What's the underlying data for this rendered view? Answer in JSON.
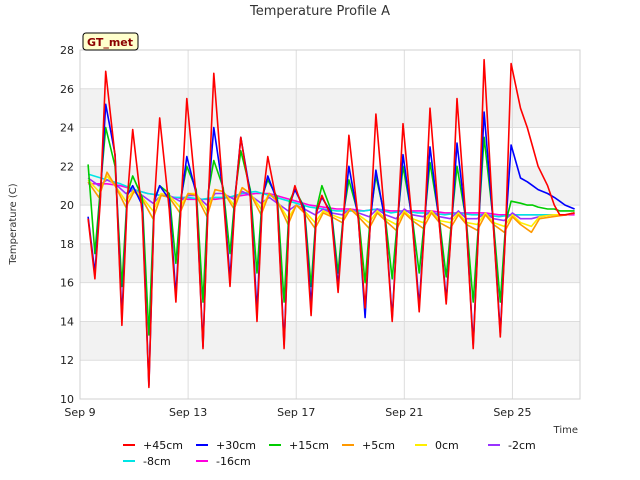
{
  "chart_data": {
    "type": "line",
    "title": "Temperature Profile A",
    "xlabel": "Time",
    "ylabel": "Temperature (C)",
    "ylim": [
      10,
      28
    ],
    "yticks": [
      10,
      12,
      14,
      16,
      18,
      20,
      22,
      24,
      26,
      28
    ],
    "xlim": [
      0,
      18.5
    ],
    "xticks": [
      {
        "label": "Sep 9",
        "x": 0
      },
      {
        "label": "Sep 13",
        "x": 4
      },
      {
        "label": "Sep 17",
        "x": 8
      },
      {
        "label": "Sep 21",
        "x": 12
      },
      {
        "label": "Sep 25",
        "x": 16
      }
    ],
    "annotation": "GT_met",
    "grid": true,
    "legend_position": "bottom",
    "series": [
      {
        "name": "+45cm",
        "color": "#ff0000",
        "x": [
          0.3,
          0.55,
          0.75,
          0.95,
          1.3,
          1.55,
          1.75,
          1.95,
          2.3,
          2.55,
          2.75,
          2.95,
          3.3,
          3.55,
          3.75,
          3.95,
          4.3,
          4.55,
          4.75,
          4.95,
          5.3,
          5.55,
          5.75,
          5.95,
          6.3,
          6.55,
          6.75,
          6.95,
          7.3,
          7.55,
          7.75,
          7.95,
          8.3,
          8.55,
          8.75,
          8.95,
          9.3,
          9.55,
          9.75,
          9.95,
          10.3,
          10.55,
          10.75,
          10.95,
          11.3,
          11.55,
          11.75,
          11.95,
          12.3,
          12.55,
          12.75,
          12.95,
          13.3,
          13.55,
          13.75,
          13.95,
          14.3,
          14.55,
          14.75,
          14.95,
          15.3,
          15.55,
          15.75,
          15.95,
          16.3,
          16.55,
          16.75,
          16.95,
          17.3,
          17.55,
          17.75,
          17.95,
          18.3
        ],
        "y": [
          19.3,
          16.2,
          20.2,
          26.9,
          22.5,
          13.8,
          20.3,
          23.9,
          19.6,
          10.6,
          20.1,
          24.5,
          19.8,
          15.0,
          20.3,
          25.5,
          20.4,
          12.6,
          20.4,
          26.8,
          20.5,
          15.8,
          20.5,
          23.5,
          20.4,
          14.0,
          20.2,
          22.5,
          20.0,
          12.6,
          19.9,
          21.0,
          19.6,
          14.3,
          19.6,
          20.5,
          19.4,
          15.5,
          19.4,
          23.6,
          19.2,
          14.7,
          19.2,
          24.7,
          19.0,
          14.0,
          19.0,
          24.2,
          19.0,
          14.5,
          19.0,
          25.0,
          18.9,
          14.9,
          18.9,
          25.5,
          18.8,
          12.6,
          18.8,
          27.5,
          18.8,
          13.2,
          18.8,
          27.3,
          25.0,
          24.0,
          23.0,
          22.0,
          21.0,
          20.0,
          19.5,
          19.5,
          19.6
        ]
      },
      {
        "name": "+30cm",
        "color": "#0000ff",
        "x": [
          0.3,
          0.55,
          0.75,
          0.95,
          1.3,
          1.55,
          1.75,
          1.95,
          2.3,
          2.55,
          2.75,
          2.95,
          3.3,
          3.55,
          3.75,
          3.95,
          4.3,
          4.55,
          4.75,
          4.95,
          5.3,
          5.55,
          5.75,
          5.95,
          6.3,
          6.55,
          6.75,
          6.95,
          7.3,
          7.55,
          7.75,
          7.95,
          8.3,
          8.55,
          8.75,
          8.95,
          9.3,
          9.55,
          9.75,
          9.95,
          10.3,
          10.55,
          10.75,
          10.95,
          11.3,
          11.55,
          11.75,
          11.95,
          12.3,
          12.55,
          12.75,
          12.95,
          13.3,
          13.55,
          13.75,
          13.95,
          14.3,
          14.55,
          14.75,
          14.95,
          15.3,
          15.55,
          15.75,
          15.95,
          16.3,
          16.55,
          16.75,
          16.95,
          17.3,
          17.55,
          17.75,
          17.95,
          18.3
        ],
        "y": [
          19.4,
          16.5,
          20.4,
          25.2,
          22.6,
          14.2,
          20.5,
          21.0,
          20.0,
          10.7,
          20.2,
          21.0,
          20.3,
          15.3,
          20.4,
          22.5,
          20.6,
          12.7,
          20.6,
          24.0,
          20.7,
          16.2,
          20.6,
          23.5,
          20.6,
          14.5,
          20.4,
          21.5,
          20.2,
          12.8,
          20.0,
          20.8,
          19.8,
          14.8,
          19.7,
          20.4,
          19.6,
          15.8,
          19.5,
          22.0,
          19.3,
          14.2,
          19.3,
          21.8,
          19.1,
          14.2,
          19.1,
          22.6,
          19.1,
          14.8,
          19.1,
          23.0,
          19.0,
          15.1,
          19.0,
          23.2,
          18.9,
          12.8,
          18.9,
          24.8,
          18.9,
          13.4,
          18.9,
          23.1,
          21.4,
          21.2,
          21.0,
          20.8,
          20.6,
          20.4,
          20.2,
          20.0,
          19.8
        ]
      },
      {
        "name": "+15cm",
        "color": "#00cc00",
        "x": [
          0.3,
          0.55,
          0.75,
          0.95,
          1.3,
          1.55,
          1.75,
          1.95,
          2.3,
          2.55,
          2.75,
          2.95,
          3.3,
          3.55,
          3.75,
          3.95,
          4.3,
          4.55,
          4.75,
          4.95,
          5.3,
          5.55,
          5.75,
          5.95,
          6.3,
          6.55,
          6.75,
          6.95,
          7.3,
          7.55,
          7.75,
          7.95,
          8.3,
          8.55,
          8.75,
          8.95,
          9.3,
          9.55,
          9.75,
          9.95,
          10.3,
          10.55,
          10.75,
          10.95,
          11.3,
          11.55,
          11.75,
          11.95,
          12.3,
          12.55,
          12.75,
          12.95,
          13.3,
          13.55,
          13.75,
          13.95,
          14.3,
          14.55,
          14.75,
          14.95,
          15.3,
          15.55,
          15.75,
          15.95,
          16.3,
          16.55,
          16.75,
          16.95,
          17.3,
          17.55,
          17.75,
          17.95,
          18.3
        ],
        "y": [
          22.1,
          17.5,
          20.8,
          24.0,
          22.0,
          15.8,
          20.6,
          21.5,
          20.4,
          13.3,
          20.3,
          21.0,
          20.6,
          17.0,
          20.5,
          22.0,
          20.8,
          15.0,
          20.7,
          22.3,
          20.9,
          17.5,
          20.7,
          22.8,
          20.8,
          16.5,
          20.5,
          21.3,
          20.4,
          15.0,
          20.2,
          20.8,
          19.9,
          15.8,
          19.8,
          21.0,
          19.7,
          16.5,
          19.6,
          21.3,
          19.5,
          16.0,
          19.5,
          21.5,
          19.3,
          16.2,
          19.3,
          22.0,
          19.3,
          16.5,
          19.3,
          22.2,
          19.2,
          16.3,
          19.2,
          22.0,
          19.1,
          15.0,
          19.1,
          23.5,
          19.1,
          15.0,
          19.1,
          20.2,
          20.1,
          20.0,
          20.0,
          19.9,
          19.8,
          19.8,
          19.7,
          19.7,
          19.7
        ]
      },
      {
        "name": "+5cm",
        "color": "#ff9900",
        "x": [
          0.3,
          0.7,
          1.0,
          1.3,
          1.7,
          2.0,
          2.3,
          2.7,
          3.0,
          3.3,
          3.7,
          4.0,
          4.3,
          4.7,
          5.0,
          5.3,
          5.7,
          6.0,
          6.3,
          6.7,
          7.0,
          7.3,
          7.7,
          8.0,
          8.3,
          8.7,
          9.0,
          9.3,
          9.7,
          10.0,
          10.3,
          10.7,
          11.0,
          11.3,
          11.7,
          12.0,
          12.3,
          12.7,
          13.0,
          13.3,
          13.7,
          14.0,
          14.3,
          14.7,
          15.0,
          15.3,
          15.7,
          16.0,
          16.3,
          16.7,
          17.0,
          17.5,
          18.0,
          18.3
        ],
        "y": [
          21.2,
          20.4,
          21.7,
          21.0,
          19.9,
          20.7,
          20.3,
          19.3,
          20.5,
          20.4,
          19.6,
          20.6,
          20.5,
          19.4,
          20.8,
          20.7,
          19.8,
          20.9,
          20.6,
          19.5,
          20.6,
          20.2,
          19.0,
          20.0,
          19.6,
          18.8,
          19.6,
          19.4,
          19.1,
          19.8,
          19.4,
          18.8,
          19.6,
          19.2,
          18.7,
          19.6,
          19.2,
          18.8,
          19.6,
          19.1,
          18.8,
          19.5,
          19.0,
          18.7,
          19.5,
          19.0,
          18.6,
          19.4,
          19.0,
          18.6,
          19.3,
          19.4,
          19.5,
          19.6
        ]
      },
      {
        "name": "0cm",
        "color": "#ffee00",
        "x": [
          0.3,
          0.7,
          1.0,
          1.3,
          1.7,
          2.0,
          2.3,
          2.7,
          3.0,
          3.3,
          3.7,
          4.0,
          4.3,
          4.7,
          5.0,
          5.3,
          5.7,
          6.0,
          6.3,
          6.7,
          7.0,
          7.3,
          7.7,
          8.0,
          8.3,
          8.7,
          9.0,
          9.3,
          9.7,
          10.0,
          10.3,
          10.7,
          11.0,
          11.3,
          11.7,
          12.0,
          12.3,
          12.7,
          13.0,
          13.3,
          13.7,
          14.0,
          14.3,
          14.7,
          15.0,
          15.3,
          15.7,
          16.0,
          16.3,
          16.7,
          17.0,
          17.5,
          18.0,
          18.3
        ],
        "y": [
          21.3,
          20.7,
          21.5,
          21.0,
          20.2,
          20.8,
          20.4,
          19.7,
          20.6,
          20.5,
          19.9,
          20.6,
          20.6,
          19.7,
          20.8,
          20.7,
          20.0,
          20.9,
          20.6,
          19.8,
          20.6,
          20.2,
          19.3,
          20.0,
          19.7,
          19.1,
          19.7,
          19.5,
          19.3,
          19.8,
          19.5,
          19.1,
          19.7,
          19.3,
          19.0,
          19.7,
          19.3,
          19.1,
          19.7,
          19.2,
          19.1,
          19.6,
          19.1,
          19.0,
          19.6,
          19.1,
          18.9,
          19.5,
          19.1,
          18.9,
          19.4,
          19.5,
          19.5,
          19.6
        ]
      },
      {
        "name": "-2cm",
        "color": "#9933ff",
        "x": [
          0.3,
          0.7,
          1.0,
          1.3,
          1.7,
          2.0,
          2.3,
          2.7,
          3.0,
          3.3,
          3.7,
          4.0,
          4.3,
          4.7,
          5.0,
          5.3,
          5.7,
          6.0,
          6.3,
          6.7,
          7.0,
          7.3,
          7.7,
          8.0,
          8.3,
          8.7,
          9.0,
          9.3,
          9.7,
          10.0,
          10.3,
          10.7,
          11.0,
          11.3,
          11.7,
          12.0,
          12.3,
          12.7,
          13.0,
          13.3,
          13.7,
          14.0,
          14.3,
          14.7,
          15.0,
          15.3,
          15.7,
          16.0,
          16.3,
          16.7,
          17.0,
          17.5,
          18.0,
          18.3
        ],
        "y": [
          21.4,
          21.0,
          21.3,
          21.1,
          20.6,
          20.8,
          20.5,
          20.1,
          20.5,
          20.5,
          20.2,
          20.5,
          20.5,
          20.0,
          20.6,
          20.6,
          20.3,
          20.7,
          20.5,
          20.1,
          20.4,
          20.1,
          19.7,
          20.0,
          19.8,
          19.5,
          19.8,
          19.6,
          19.5,
          19.8,
          19.6,
          19.4,
          19.8,
          19.5,
          19.3,
          19.8,
          19.5,
          19.4,
          19.7,
          19.4,
          19.3,
          19.7,
          19.3,
          19.3,
          19.6,
          19.3,
          19.2,
          19.6,
          19.3,
          19.3,
          19.4,
          19.5,
          19.5,
          19.6
        ]
      },
      {
        "name": "-8cm",
        "color": "#00e5e5",
        "x": [
          0.3,
          1.0,
          1.5,
          2.0,
          2.5,
          3.0,
          3.5,
          4.0,
          4.5,
          5.0,
          5.5,
          6.0,
          6.5,
          7.0,
          7.5,
          8.0,
          8.5,
          9.0,
          9.5,
          10.0,
          10.5,
          11.0,
          11.5,
          12.0,
          12.5,
          13.0,
          13.5,
          14.0,
          14.5,
          15.0,
          15.5,
          16.0,
          16.5,
          17.0,
          17.5,
          18.0,
          18.3
        ],
        "y": [
          21.6,
          21.3,
          21.1,
          20.8,
          20.6,
          20.5,
          20.4,
          20.4,
          20.3,
          20.4,
          20.4,
          20.6,
          20.7,
          20.5,
          20.3,
          20.1,
          19.9,
          19.8,
          19.7,
          19.7,
          19.7,
          19.8,
          19.6,
          19.7,
          19.6,
          19.6,
          19.5,
          19.6,
          19.5,
          19.5,
          19.4,
          19.5,
          19.5,
          19.5,
          19.5,
          19.5,
          19.6
        ]
      },
      {
        "name": "-16cm",
        "color": "#ff00dd",
        "x": [
          0.3,
          1.0,
          1.5,
          2.0,
          2.5,
          3.0,
          3.5,
          4.0,
          4.5,
          5.0,
          5.5,
          6.0,
          6.5,
          7.0,
          7.5,
          8.0,
          8.5,
          9.0,
          9.5,
          10.0,
          10.5,
          11.0,
          11.5,
          12.0,
          12.5,
          13.0,
          13.5,
          14.0,
          14.5,
          15.0,
          15.5,
          16.0,
          16.5,
          17.0,
          17.5,
          18.0,
          18.3
        ],
        "y": [
          21.1,
          21.1,
          21.0,
          20.8,
          20.6,
          20.5,
          20.4,
          20.3,
          20.3,
          20.3,
          20.4,
          20.5,
          20.6,
          20.6,
          20.4,
          20.2,
          20.0,
          19.9,
          19.8,
          19.8,
          19.7,
          19.8,
          19.7,
          19.7,
          19.7,
          19.7,
          19.6,
          19.6,
          19.6,
          19.6,
          19.5,
          19.5,
          19.5,
          19.5,
          19.5,
          19.5,
          19.5
        ]
      }
    ]
  }
}
